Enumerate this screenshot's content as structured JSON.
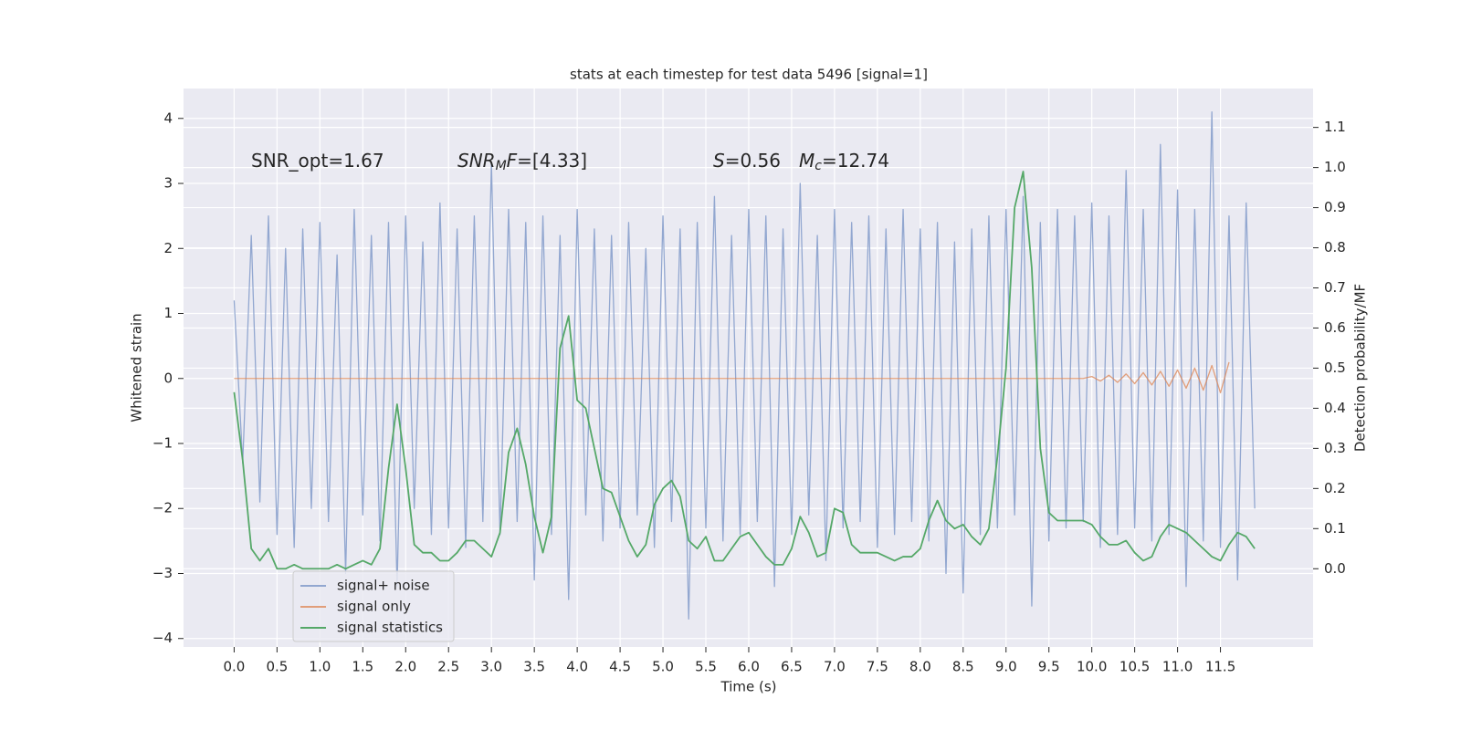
{
  "chart_data": {
    "type": "line",
    "title": "stats at each timestep for test data 5496 [signal=1]",
    "xlabel": "Time (s)",
    "ylabel": "Whitened strain",
    "y2label": "Detection probability/MF",
    "annotations": [
      [
        "SNR_opt=1.67"
      ],
      [
        "SNR",
        "M",
        "F",
        "=[4.33]"
      ],
      [
        "S",
        "=0.56"
      ],
      [
        "M",
        "c",
        "=12.74"
      ]
    ],
    "x": [
      0.0,
      0.1,
      0.2,
      0.3,
      0.4,
      0.5,
      0.6,
      0.7,
      0.8,
      0.9,
      1.0,
      1.1,
      1.2,
      1.3,
      1.4,
      1.5,
      1.6,
      1.7,
      1.8,
      1.9,
      2.0,
      2.1,
      2.2,
      2.3,
      2.4,
      2.5,
      2.6,
      2.7,
      2.8,
      2.9,
      3.0,
      3.1,
      3.2,
      3.3,
      3.4,
      3.5,
      3.6,
      3.7,
      3.8,
      3.9,
      4.0,
      4.1,
      4.2,
      4.3,
      4.4,
      4.5,
      4.6,
      4.7,
      4.8,
      4.9,
      5.0,
      5.1,
      5.2,
      5.3,
      5.4,
      5.5,
      5.6,
      5.7,
      5.8,
      5.9,
      6.0,
      6.1,
      6.2,
      6.3,
      6.4,
      6.5,
      6.6,
      6.7,
      6.8,
      6.9,
      7.0,
      7.1,
      7.2,
      7.3,
      7.4,
      7.5,
      7.6,
      7.7,
      7.8,
      7.9,
      8.0,
      8.1,
      8.2,
      8.3,
      8.4,
      8.5,
      8.6,
      8.7,
      8.8,
      8.9,
      9.0,
      9.1,
      9.2,
      9.3,
      9.4,
      9.5,
      9.6,
      9.7,
      9.8,
      9.9,
      10.0,
      10.1,
      10.2,
      10.3,
      10.4,
      10.5,
      10.6,
      10.7,
      10.8,
      10.9,
      11.0,
      11.1,
      11.2,
      11.3,
      11.4,
      11.5,
      11.6,
      11.7,
      11.8,
      11.9
    ],
    "series": [
      {
        "name": "signal+ noise",
        "color": "#92a7d0",
        "values": [
          1.2,
          -1.3,
          2.2,
          -1.9,
          2.5,
          -2.4,
          2.0,
          -2.6,
          2.3,
          -2.0,
          2.4,
          -2.2,
          1.9,
          -3.0,
          2.6,
          -2.1,
          2.2,
          -2.5,
          2.4,
          -3.2,
          2.5,
          -2.0,
          2.1,
          -2.4,
          2.7,
          -2.3,
          2.3,
          -2.6,
          2.5,
          -2.2,
          3.3,
          -2.4,
          2.6,
          -2.2,
          2.4,
          -3.1,
          2.5,
          -2.4,
          2.2,
          -3.4,
          2.6,
          -2.1,
          2.3,
          -2.5,
          2.2,
          -2.3,
          2.4,
          -2.1,
          2.0,
          -2.6,
          2.5,
          -2.2,
          2.3,
          -3.7,
          2.4,
          -2.3,
          2.8,
          -2.5,
          2.2,
          -2.4,
          2.6,
          -2.2,
          2.5,
          -3.2,
          2.3,
          -2.4,
          3.0,
          -2.1,
          2.2,
          -2.8,
          2.6,
          -2.3,
          2.4,
          -2.2,
          2.5,
          -2.6,
          2.3,
          -2.4,
          2.6,
          -2.2,
          2.3,
          -2.5,
          2.4,
          -3.0,
          2.1,
          -3.3,
          2.3,
          -2.4,
          2.5,
          -2.3,
          2.6,
          -2.1,
          2.8,
          -3.5,
          2.4,
          -2.5,
          2.6,
          -2.3,
          2.5,
          -2.2,
          2.7,
          -2.6,
          2.5,
          -2.4,
          3.2,
          -2.3,
          2.6,
          -2.5,
          3.6,
          -2.4,
          2.9,
          -3.2,
          2.6,
          -2.5,
          4.1,
          -2.6,
          2.5,
          -3.1,
          2.7,
          -2.0
        ]
      },
      {
        "name": "signal only",
        "color": "#dd8452",
        "values": [
          0,
          0,
          0,
          0,
          0,
          0,
          0,
          0,
          0,
          0,
          0,
          0,
          0,
          0,
          0,
          0,
          0,
          0,
          0,
          0,
          0,
          0,
          0,
          0,
          0,
          0,
          0,
          0,
          0,
          0,
          0,
          0,
          0,
          0,
          0,
          0,
          0,
          0,
          0,
          0,
          0,
          0,
          0,
          0,
          0,
          0,
          0,
          0,
          0,
          0,
          0,
          0,
          0,
          0,
          0,
          0,
          0,
          0,
          0,
          0,
          0,
          0,
          0,
          0,
          0,
          0,
          0,
          0,
          0,
          0,
          0,
          0,
          0,
          0,
          0,
          0,
          0,
          0,
          0,
          0,
          0,
          0,
          0,
          0,
          0,
          0,
          0,
          0,
          0,
          0,
          0,
          0,
          0,
          0,
          0,
          0,
          0,
          0,
          0,
          0,
          0.03,
          -0.04,
          0.05,
          -0.06,
          0.07,
          -0.08,
          0.09,
          -0.1,
          0.11,
          -0.12,
          0.13,
          -0.15,
          0.16,
          -0.18,
          0.2,
          -0.22,
          0.25,
          null,
          null,
          null
        ]
      },
      {
        "name": "signal statistics",
        "color": "#55a868",
        "axis": "y2",
        "values": [
          0.44,
          0.27,
          0.05,
          0.02,
          0.05,
          0.0,
          0.0,
          0.01,
          0.0,
          0.0,
          0.0,
          0.0,
          0.01,
          0.0,
          0.01,
          0.02,
          0.01,
          0.05,
          0.25,
          0.41,
          0.25,
          0.06,
          0.04,
          0.04,
          0.02,
          0.02,
          0.04,
          0.07,
          0.07,
          0.05,
          0.03,
          0.09,
          0.29,
          0.35,
          0.26,
          0.13,
          0.04,
          0.13,
          0.55,
          0.63,
          0.42,
          0.4,
          0.3,
          0.2,
          0.19,
          0.13,
          0.07,
          0.03,
          0.06,
          0.16,
          0.2,
          0.22,
          0.18,
          0.07,
          0.05,
          0.08,
          0.02,
          0.02,
          0.05,
          0.08,
          0.09,
          0.06,
          0.03,
          0.01,
          0.01,
          0.05,
          0.13,
          0.09,
          0.03,
          0.04,
          0.15,
          0.14,
          0.06,
          0.04,
          0.04,
          0.04,
          0.03,
          0.02,
          0.03,
          0.03,
          0.05,
          0.12,
          0.17,
          0.12,
          0.1,
          0.11,
          0.08,
          0.06,
          0.1,
          0.28,
          0.5,
          0.9,
          0.99,
          0.75,
          0.3,
          0.14,
          0.12,
          0.12,
          0.12,
          0.12,
          0.11,
          0.08,
          0.06,
          0.06,
          0.07,
          0.04,
          0.02,
          0.03,
          0.08,
          0.11,
          0.1,
          0.09,
          0.07,
          0.05,
          0.03,
          0.02,
          0.06,
          0.09,
          0.08,
          0.05
        ]
      }
    ],
    "xlim": [
      -0.59,
      12.58
    ],
    "xticks": [
      {
        "value": 0,
        "label": "0.0"
      },
      0.5,
      {
        "value": 1,
        "label": "1.0"
      },
      1.5,
      {
        "value": 2,
        "label": "2.0"
      },
      2.5,
      {
        "value": 3,
        "label": "3.0"
      },
      3.5,
      {
        "value": 4,
        "label": "4.0"
      },
      4.5,
      {
        "value": 5,
        "label": "5.0"
      },
      5.5,
      {
        "value": 6,
        "label": "6.0"
      },
      6.5,
      {
        "value": 7,
        "label": "7.0"
      },
      7.5,
      {
        "value": 8,
        "label": "8.0"
      },
      8.5,
      {
        "value": 9,
        "label": "9.0"
      },
      9.5,
      {
        "value": 10,
        "label": "10.0"
      },
      10.5,
      {
        "value": 11,
        "label": "11.0"
      },
      11.5
    ],
    "ylim": [
      -4.13,
      4.46
    ],
    "yticks": [
      {
        "value": -4,
        "label": "−4"
      },
      {
        "value": -3,
        "label": "−3"
      },
      {
        "value": -2,
        "label": "−2"
      },
      {
        "value": -1,
        "label": "−1"
      },
      0,
      1,
      2,
      3,
      4
    ],
    "y2lim": [
      -0.195,
      1.197
    ],
    "y2ticks": [
      {
        "value": 0,
        "label": "0.0"
      },
      0.1,
      0.2,
      0.3,
      0.4,
      0.5,
      0.6,
      0.7,
      0.8,
      0.9,
      {
        "value": 1,
        "label": "1.0"
      },
      1.1
    ],
    "grid": true,
    "legend_loc": "lower left"
  }
}
